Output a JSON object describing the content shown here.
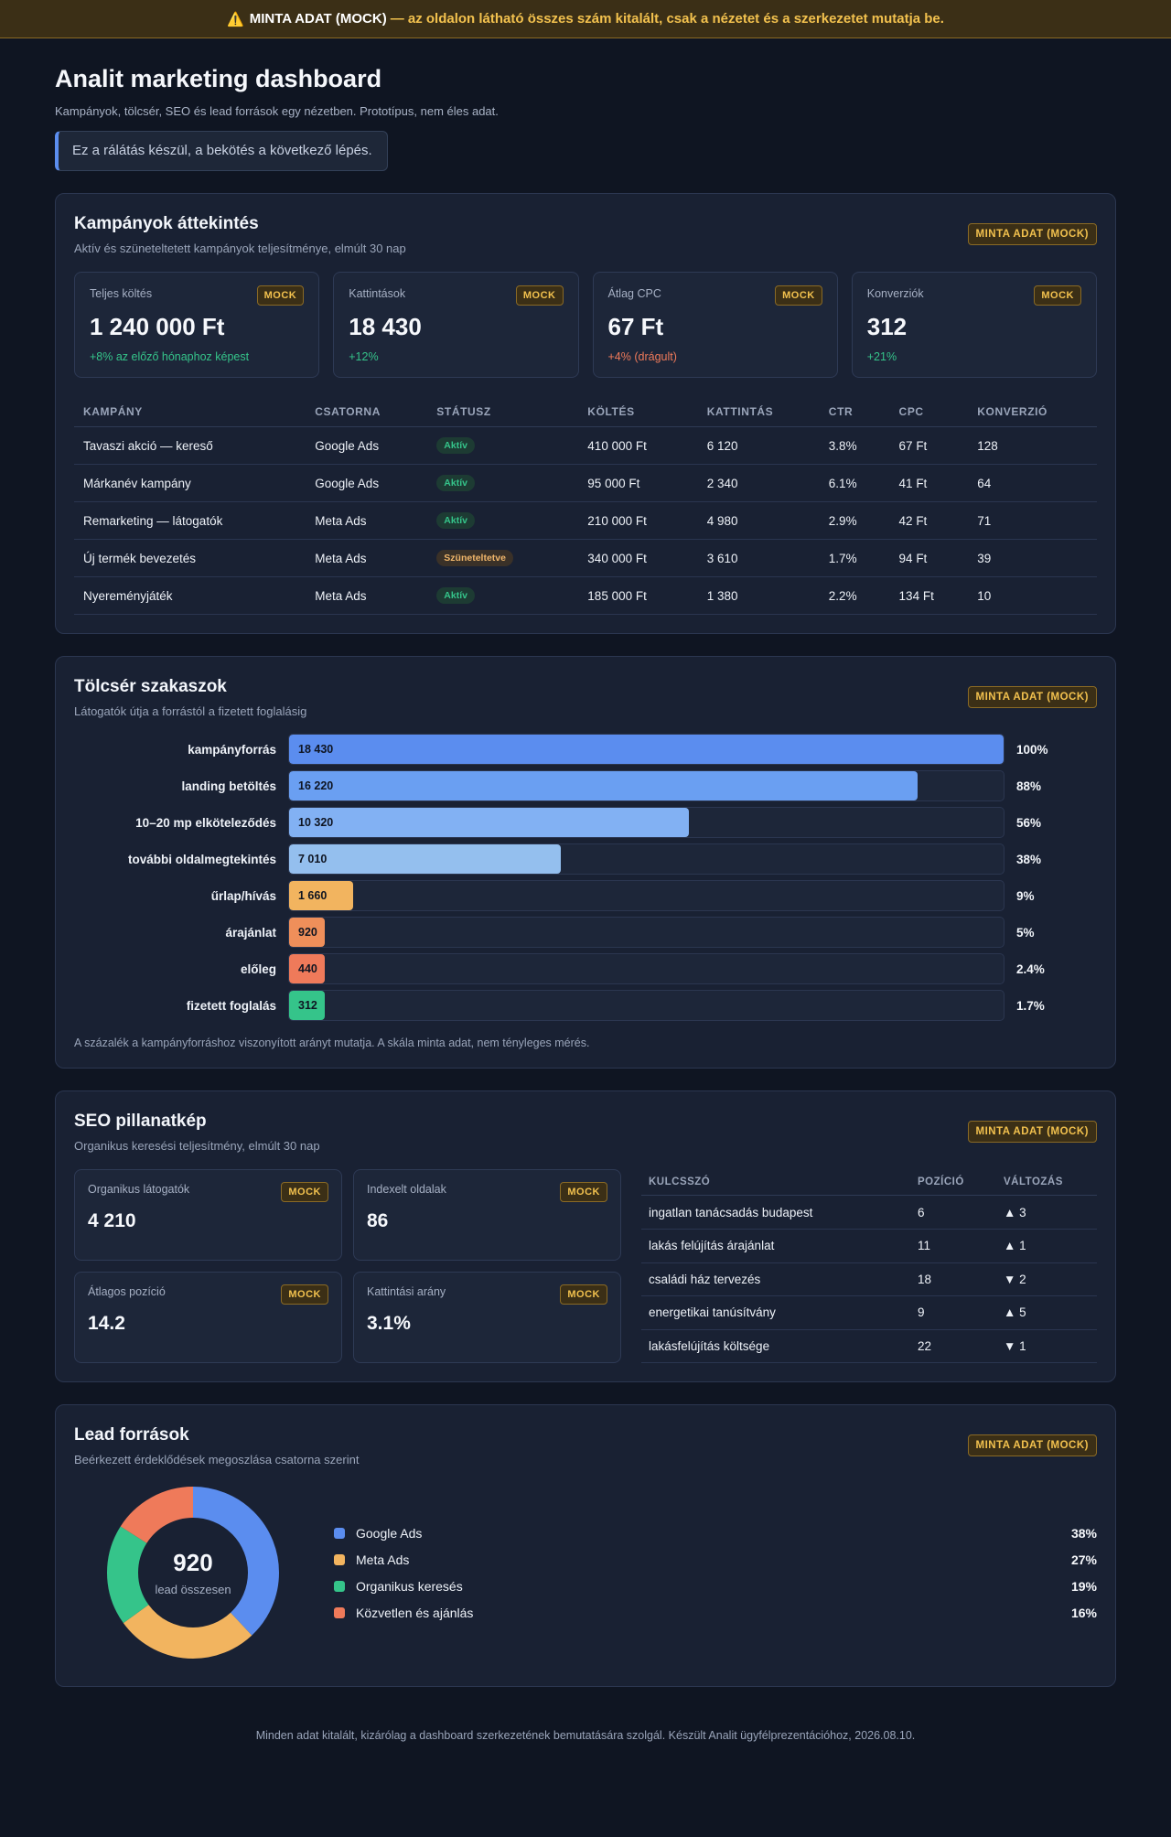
{
  "banner": {
    "icon": "warning-icon",
    "icon_glyph": "⚠️",
    "strong": "MINTA ADAT (MOCK)",
    "text": "— az oldalon látható összes szám kitalált, csak a nézetet és a szerkezetet mutatja be."
  },
  "header": {
    "title": "Analit marketing dashboard",
    "subtitle": "Kampányok, tölcsér, SEO és lead források egy nézetben. Prototípus, nem éles adat.",
    "notice": "Ez a rálátás készül, a bekötés a következő lépés."
  },
  "badges": {
    "section": "MINTA ADAT (MOCK)",
    "mock": "MOCK"
  },
  "campaigns": {
    "title": "Kampányok áttekintés",
    "subtitle": "Aktív és szüneteltetett kampányok teljesítménye, elmúlt 30 nap",
    "kpis": [
      {
        "label": "Teljes költés",
        "value": "1 240 000 Ft",
        "delta": "+8% az előző hónaphoz képest",
        "trend": "pos"
      },
      {
        "label": "Kattintások",
        "value": "18 430",
        "delta": "+12%",
        "trend": "pos"
      },
      {
        "label": "Átlag CPC",
        "value": "67 Ft",
        "delta": "+4% (drágult)",
        "trend": "neg"
      },
      {
        "label": "Konverziók",
        "value": "312",
        "delta": "+21%",
        "trend": "pos"
      }
    ],
    "columns": [
      "KAMPÁNY",
      "CSATORNA",
      "STÁTUSZ",
      "KÖLTÉS",
      "KATTINTÁS",
      "CTR",
      "CPC",
      "KONVERZIÓ"
    ],
    "rows": [
      {
        "name": "Tavaszi akció — kereső",
        "channel": "Google Ads",
        "status": "Aktív",
        "status_type": "active",
        "spend": "410 000 Ft",
        "clicks": "6 120",
        "ctr": "3.8%",
        "cpc": "67 Ft",
        "conv": "128"
      },
      {
        "name": "Márkanév kampány",
        "channel": "Google Ads",
        "status": "Aktív",
        "status_type": "active",
        "spend": "95 000 Ft",
        "clicks": "2 340",
        "ctr": "6.1%",
        "cpc": "41 Ft",
        "conv": "64"
      },
      {
        "name": "Remarketing — látogatók",
        "channel": "Meta Ads",
        "status": "Aktív",
        "status_type": "active",
        "spend": "210 000 Ft",
        "clicks": "4 980",
        "ctr": "2.9%",
        "cpc": "42 Ft",
        "conv": "71"
      },
      {
        "name": "Új termék bevezetés",
        "channel": "Meta Ads",
        "status": "Szüneteltetve",
        "status_type": "paused",
        "spend": "340 000 Ft",
        "clicks": "3 610",
        "ctr": "1.7%",
        "cpc": "94 Ft",
        "conv": "39"
      },
      {
        "name": "Nyereményjáték",
        "channel": "Meta Ads",
        "status": "Aktív",
        "status_type": "active",
        "spend": "185 000 Ft",
        "clicks": "1 380",
        "ctr": "2.2%",
        "cpc": "134 Ft",
        "conv": "10"
      }
    ]
  },
  "funnel": {
    "title": "Tölcsér szakaszok",
    "subtitle": "Látogatók útja a forrástól a fizetett foglalásig",
    "stages": [
      {
        "label": "kampányforrás",
        "value": "18 430",
        "pct": "100%",
        "ratio": 1.0,
        "color": "#5b8def"
      },
      {
        "label": "landing betöltés",
        "value": "16 220",
        "pct": "88%",
        "ratio": 0.88,
        "color": "#6a9ff2"
      },
      {
        "label": "10–20 mp elköteleződés",
        "value": "10 320",
        "pct": "56%",
        "ratio": 0.56,
        "color": "#82b1f3"
      },
      {
        "label": "további oldalmegtekintés",
        "value": "7 010",
        "pct": "38%",
        "ratio": 0.38,
        "color": "#94bfee"
      },
      {
        "label": "űrlap/hívás",
        "value": "1 660",
        "pct": "9%",
        "ratio": 0.09,
        "color": "#f2b45f"
      },
      {
        "label": "árajánlat",
        "value": "920",
        "pct": "5%",
        "ratio": 0.05,
        "color": "#ef8f5a"
      },
      {
        "label": "előleg",
        "value": "440",
        "pct": "2.4%",
        "ratio": 0.024,
        "color": "#ef7a5a"
      },
      {
        "label": "fizetett foglalás",
        "value": "312",
        "pct": "1.7%",
        "ratio": 0.017,
        "color": "#35c48a"
      }
    ],
    "note": "A százalék a kampányforráshoz viszonyított arányt mutatja. A skála minta adat, nem tényleges mérés."
  },
  "seo": {
    "title": "SEO pillanatkép",
    "subtitle": "Organikus keresési teljesítmény, elmúlt 30 nap",
    "kpis": [
      {
        "label": "Organikus látogatók",
        "value": "4 210"
      },
      {
        "label": "Indexelt oldalak",
        "value": "86"
      },
      {
        "label": "Átlagos pozíció",
        "value": "14.2"
      },
      {
        "label": "Kattintási arány",
        "value": "3.1%"
      }
    ],
    "columns": [
      "KULCSSZÓ",
      "POZÍCIÓ",
      "VÁLTOZÁS"
    ],
    "keywords": [
      {
        "keyword": "ingatlan tanácsadás budapest",
        "position": "6",
        "change": "▲ 3",
        "trend": "pos"
      },
      {
        "keyword": "lakás felújítás árajánlat",
        "position": "11",
        "change": "▲ 1",
        "trend": "pos"
      },
      {
        "keyword": "családi ház tervezés",
        "position": "18",
        "change": "▼ 2",
        "trend": "neg"
      },
      {
        "keyword": "energetikai tanúsítvány",
        "position": "9",
        "change": "▲ 5",
        "trend": "pos"
      },
      {
        "keyword": "lakásfelújítás költsége",
        "position": "22",
        "change": "▼ 1",
        "trend": "neg"
      }
    ]
  },
  "leads": {
    "title": "Lead források",
    "subtitle": "Beérkezett érdeklődések megoszlása csatorna szerint",
    "total": "920",
    "total_label": "lead összesen",
    "sources": [
      {
        "name": "Google Ads",
        "pct": "38%",
        "share": 38,
        "color": "#5b8def"
      },
      {
        "name": "Meta Ads",
        "pct": "27%",
        "share": 27,
        "color": "#f2b45f"
      },
      {
        "name": "Organikus keresés",
        "pct": "19%",
        "share": 19,
        "color": "#35c48a"
      },
      {
        "name": "Közvetlen és ajánlás",
        "pct": "16%",
        "share": 16,
        "color": "#ef7a5a"
      }
    ]
  },
  "footer": "Minden adat kitalált, kizárólag a dashboard szerkezetének bemutatására szolgál. Készült Analit ügyfélprezentációhoz, 2026.08.10."
}
